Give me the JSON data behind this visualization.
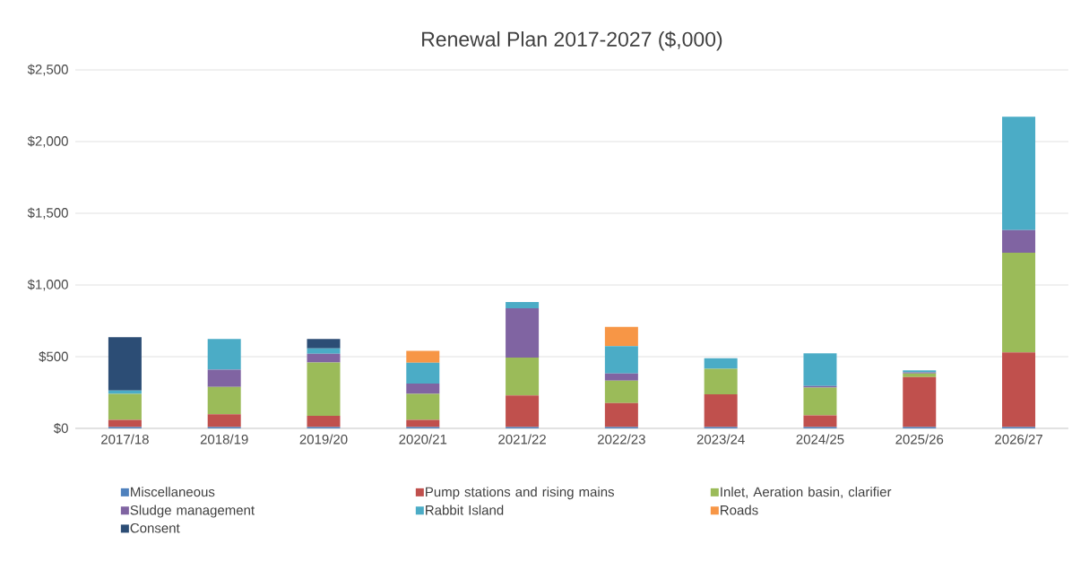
{
  "chart_data": {
    "type": "bar",
    "stacked": true,
    "title": "Renewal Plan 2017-2027 ($,000)",
    "categories": [
      "2017/18",
      "2018/19",
      "2019/20",
      "2020/21",
      "2021/22",
      "2022/23",
      "2023/24",
      "2024/25",
      "2025/26",
      "2026/27"
    ],
    "series": [
      {
        "name": "Miscellaneous",
        "color": "#4f81bd",
        "values": [
          10,
          10,
          10,
          10,
          10,
          10,
          10,
          10,
          10,
          10
        ]
      },
      {
        "name": "Pump stations and rising mains",
        "color": "#c0504d",
        "values": [
          50,
          88,
          77,
          50,
          219,
          166,
          228,
          81,
          348,
          519
        ]
      },
      {
        "name": "Inlet, Aeration basin, clarifier",
        "color": "#9bbb59",
        "values": [
          180,
          191,
          373,
          180,
          264,
          157,
          178,
          193,
          24,
          696
        ]
      },
      {
        "name": "Sludge management",
        "color": "#8064a2",
        "values": [
          0,
          120,
          60,
          73,
          344,
          49,
          0,
          12,
          8,
          158
        ]
      },
      {
        "name": "Rabbit Island",
        "color": "#4bacc6",
        "values": [
          24,
          215,
          38,
          145,
          44,
          191,
          73,
          228,
          14,
          790
        ]
      },
      {
        "name": "Roads",
        "color": "#f79646",
        "values": [
          0,
          0,
          0,
          82,
          0,
          134,
          0,
          0,
          0,
          0
        ]
      },
      {
        "name": "Consent",
        "color": "#2c4d75",
        "values": [
          372,
          0,
          66,
          0,
          0,
          0,
          0,
          0,
          0,
          0
        ]
      }
    ],
    "ylim": [
      0,
      2500
    ],
    "yticks": [
      {
        "value": 0,
        "label": "$0"
      },
      {
        "value": 500,
        "label": "$500"
      },
      {
        "value": 1000,
        "label": "$1,000"
      },
      {
        "value": 1500,
        "label": "$1,500"
      },
      {
        "value": 2000,
        "label": "$2,000"
      },
      {
        "value": 2500,
        "label": "$2,500"
      }
    ],
    "grid": "y",
    "legend": "bottom"
  }
}
